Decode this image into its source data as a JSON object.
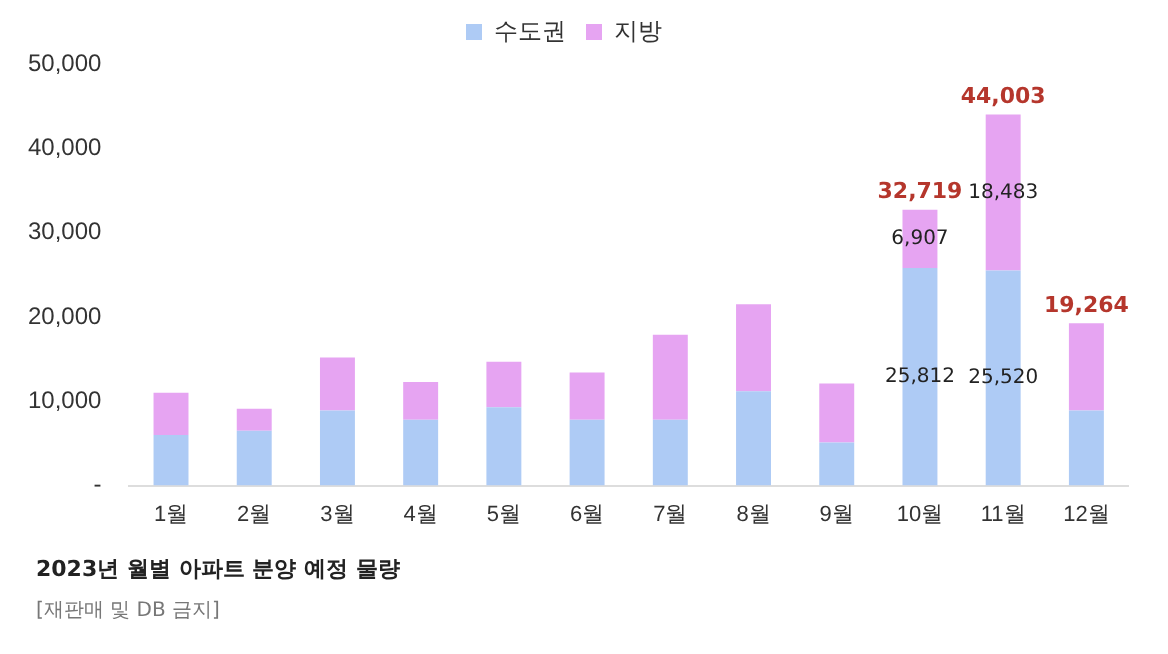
{
  "chart_data": {
    "type": "bar",
    "stacked": true,
    "title": "2023년 월별 아파트 분양 예정 물량",
    "annotations": [
      "[재판매 및 DB 금지]"
    ],
    "categories": [
      "1월",
      "2월",
      "3월",
      "4월",
      "5월",
      "6월",
      "7월",
      "8월",
      "9월",
      "10월",
      "11월",
      "12월"
    ],
    "series": [
      {
        "name": "수도권",
        "color": "#aecbf5",
        "values": [
          6000,
          6500,
          8900,
          7800,
          9300,
          7800,
          7800,
          11200,
          5100,
          25812,
          25520,
          8900
        ],
        "value_labels": [
          null,
          null,
          null,
          null,
          null,
          null,
          null,
          null,
          null,
          "25,812",
          "25,520",
          null
        ]
      },
      {
        "name": "지방",
        "color": "#e6a4f2",
        "values": [
          5000,
          2600,
          6300,
          4500,
          5400,
          5600,
          10100,
          10300,
          7000,
          6907,
          18483,
          10364
        ],
        "value_labels": [
          null,
          null,
          null,
          null,
          null,
          null,
          null,
          null,
          null,
          "6,907",
          "18,483",
          null
        ]
      }
    ],
    "totals": [
      null,
      null,
      null,
      null,
      null,
      null,
      null,
      null,
      null,
      "32,719",
      "44,003",
      "19,264"
    ],
    "ylim": [
      0,
      50000
    ],
    "yticks": [
      {
        "value": 0,
        "label": "-"
      },
      {
        "value": 10000,
        "label": "10,000"
      },
      {
        "value": 20000,
        "label": "20,000"
      },
      {
        "value": 30000,
        "label": "30,000"
      },
      {
        "value": 40000,
        "label": "40,000"
      },
      {
        "value": 50000,
        "label": "50,000"
      }
    ],
    "grid": false,
    "legend": "top"
  }
}
